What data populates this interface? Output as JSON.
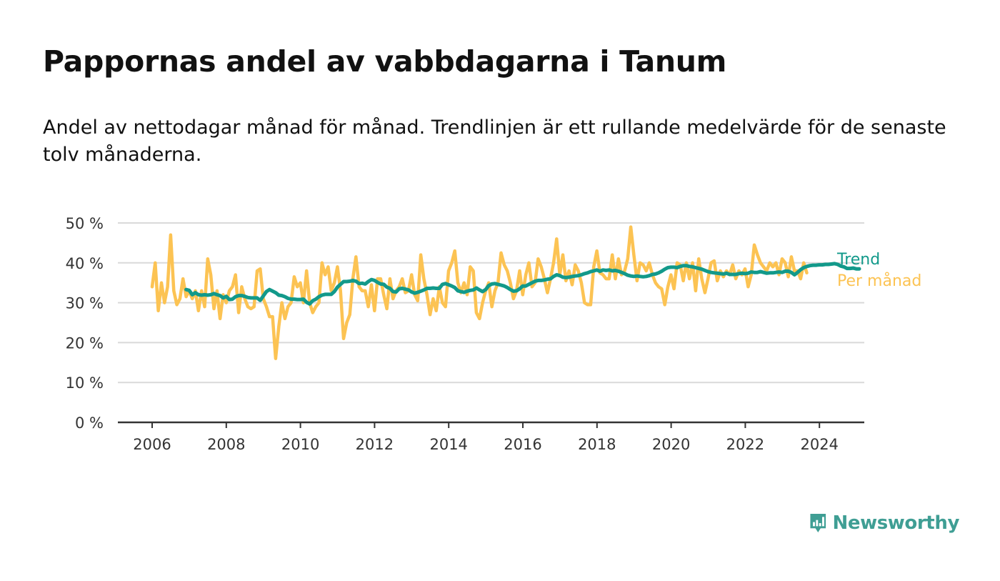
{
  "title": "Pappornas andel av vabbdagarna i Tanum",
  "subtitle": "Andel av nettodagar månad för månad. Trendlinjen är ett rullande medelvärde för de senaste tolv månaderna.",
  "brand": {
    "name": "Newsworthy",
    "icon": "newsworthy-logo-icon"
  },
  "colors": {
    "trend": "#12998a",
    "monthly": "#fcc353",
    "grid": "#d9d9d9",
    "axis": "#333333"
  },
  "chart_data": {
    "type": "line",
    "title": "Pappornas andel av vabbdagarna i Tanum",
    "subtitle": "Andel av nettodagar månad för månad. Trendlinjen är ett rullande medelvärde för de senaste tolv månaderna.",
    "xlabel": "",
    "ylabel": "",
    "x_unit": "year (decimal)",
    "ylim": [
      0,
      50
    ],
    "xlim": [
      2006,
      2024.5
    ],
    "yticks": [
      0,
      10,
      20,
      30,
      40,
      50
    ],
    "ytick_labels": [
      "0 %",
      "10 %",
      "20 %",
      "30 %",
      "40 %",
      "50 %"
    ],
    "xticks": [
      2006,
      2008,
      2010,
      2012,
      2014,
      2016,
      2018,
      2020,
      2022,
      2024
    ],
    "xtick_labels": [
      "2006",
      "2008",
      "2010",
      "2012",
      "2014",
      "2016",
      "2018",
      "2020",
      "2022",
      "2024"
    ],
    "grid": true,
    "legend": "right-end labels",
    "series": [
      {
        "name": "Per månad",
        "color": "#fcc353",
        "x_start": 2006.0,
        "x_step": 0.0833,
        "values": [
          34,
          40,
          28,
          35,
          30,
          34,
          47,
          33,
          29.5,
          31,
          36,
          31.5,
          33,
          31,
          33,
          28,
          33,
          29,
          41,
          37,
          28.5,
          33,
          26,
          32,
          30,
          33,
          34,
          37,
          27.5,
          34,
          31,
          29,
          28.5,
          29,
          38,
          38.5,
          31,
          29,
          26.5,
          26.5,
          16,
          24,
          30,
          26,
          29,
          30,
          36.5,
          34,
          35,
          30,
          38,
          30,
          27.5,
          29,
          30,
          40,
          37,
          39,
          33,
          35,
          39,
          33,
          21,
          25,
          27,
          36,
          41.5,
          34,
          33,
          33,
          29,
          34.5,
          28,
          36,
          36,
          32,
          28.5,
          36,
          31,
          33,
          34,
          36,
          32.5,
          33,
          37,
          32,
          30.5,
          42,
          36,
          32,
          27,
          31,
          28,
          34,
          30,
          29,
          38,
          40,
          43,
          35,
          32.5,
          35,
          32,
          39,
          38,
          27.5,
          26,
          30,
          33,
          35,
          29,
          33,
          35,
          42.5,
          39.5,
          38,
          35,
          31,
          33,
          38,
          32,
          37,
          40,
          34,
          35,
          41,
          39,
          36,
          32.5,
          36,
          40,
          46,
          37,
          42,
          35.5,
          38,
          34.5,
          39.5,
          38,
          35,
          30,
          29.5,
          29.5,
          39,
          43,
          37.5,
          37,
          36,
          36,
          42,
          36,
          41,
          37,
          38,
          41,
          49,
          42,
          35.5,
          40,
          39.5,
          38,
          40,
          37,
          35,
          34,
          33.5,
          29.5,
          34,
          37,
          33.5,
          40,
          39.5,
          35.5,
          40,
          36,
          40,
          33,
          41,
          36,
          32.5,
          36,
          40,
          40.5,
          35.5,
          38,
          36.5,
          38,
          37,
          39.5,
          36,
          38,
          37,
          38.5,
          34,
          37,
          44.5,
          42,
          40,
          39,
          38,
          40,
          39,
          40,
          37,
          41,
          40,
          36.5,
          41.5,
          38,
          38,
          36,
          40,
          37.5
        ]
      },
      {
        "name": "Trend",
        "color": "#12998a",
        "x_start": 2006.9167,
        "x_step": 0.0833,
        "values": [
          33.3,
          33.1,
          32,
          32.5,
          32,
          31.9,
          32,
          31.9,
          32,
          32.3,
          32,
          31.8,
          31.2,
          31.6,
          30.8,
          30.9,
          31.5,
          31.8,
          31.8,
          31.6,
          31.3,
          31.2,
          31.2,
          31.2,
          30.6,
          31.7,
          32.8,
          33.3,
          32.9,
          32.5,
          31.9,
          31.8,
          31.5,
          31.1,
          30.9,
          30.9,
          30.8,
          30.8,
          30.9,
          30.1,
          29.7,
          30.5,
          30.9,
          31.5,
          31.9,
          32.1,
          32.1,
          32.1,
          32.8,
          33.9,
          34.6,
          35.3,
          35.3,
          35.4,
          35.6,
          35.4,
          34.8,
          34.9,
          34.7,
          35.3,
          35.8,
          35.6,
          35.1,
          34.7,
          34.6,
          33.9,
          33.6,
          32.8,
          32.7,
          33.5,
          33.6,
          33.4,
          33.2,
          32.7,
          32.4,
          32.6,
          32.9,
          33.2,
          33.6,
          33.6,
          33.7,
          33.6,
          33.6,
          34.6,
          34.8,
          34.5,
          34.2,
          33.8,
          33,
          32.8,
          32.6,
          32.9,
          33.1,
          33.2,
          33.7,
          33.2,
          32.8,
          33.3,
          34.3,
          34.7,
          34.8,
          34.6,
          34.4,
          34.2,
          33.8,
          33.3,
          32.9,
          33,
          33.5,
          34.2,
          34.2,
          34.6,
          35,
          35.4,
          35.6,
          35.6,
          35.7,
          35.9,
          36,
          36.6,
          37,
          36.8,
          36.4,
          36.3,
          36.4,
          36.6,
          36.7,
          36.8,
          37,
          37.3,
          37.5,
          37.8,
          38,
          38.2,
          37.9,
          38.2,
          38.1,
          38.2,
          38,
          38.1,
          37.9,
          37.6,
          37.3,
          36.9,
          36.7,
          36.6,
          36.7,
          36.6,
          36.5,
          36.6,
          36.8,
          37.1,
          37.2,
          37.5,
          37.9,
          38.4,
          38.8,
          38.9,
          38.9,
          38.8,
          39.1,
          39.3,
          39.3,
          39.1,
          39,
          38.8,
          38.6,
          38.4,
          38.1,
          37.8,
          37.6,
          37.5,
          37.4,
          37.3,
          37.2,
          37.4,
          37.1,
          37.1,
          37.1,
          37.3,
          37.4,
          37.3,
          37.4,
          37.7,
          37.6,
          37.6,
          37.8,
          37.6,
          37.4,
          37.5,
          37.5,
          37.6,
          37.7,
          37.6,
          37.9,
          37.9,
          37.6,
          37,
          37.6,
          38.3,
          38.8,
          39.1,
          39.3,
          39.4,
          39.4,
          39.5,
          39.5,
          39.6,
          39.6,
          39.7,
          39.8,
          39.6,
          39.2,
          39,
          38.6,
          38.6,
          38.7,
          38.5,
          38.5
        ]
      }
    ]
  }
}
